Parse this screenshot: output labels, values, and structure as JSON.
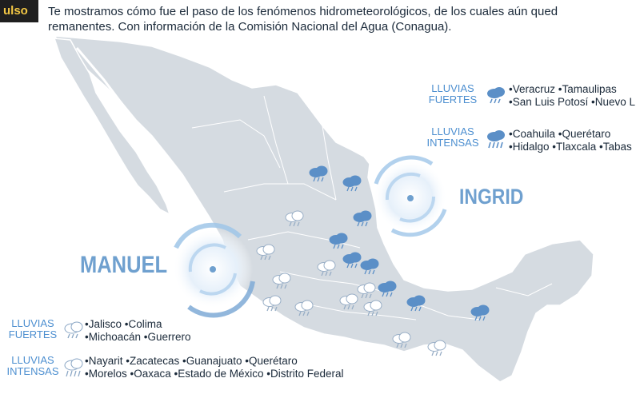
{
  "header": {
    "badge": "ulso",
    "line1": "Te mostramos cómo fue el paso de los fenómenos hidrometeorológicos, de los cuales aún qued",
    "line2": "remanentes. Con información de la Comisión Nacional del Agua (Conagua)."
  },
  "storms": {
    "ingrid": "INGRID",
    "manuel": "MANUEL"
  },
  "legend_ingrid": {
    "fuertes": {
      "label_line1": "LLUVIAS",
      "label_line2": "FUERTES",
      "items_line1": "•Veracruz •Tamaulipas",
      "items_line2": "•San Luis Potosí •Nuevo L"
    },
    "intensas": {
      "label_line1": "LLUVIAS",
      "label_line2": "INTENSAS",
      "items_line1": "•Coahuila •Querétaro",
      "items_line2": "•Hidalgo •Tlaxcala •Tabas"
    }
  },
  "legend_manuel": {
    "fuertes": {
      "label_line1": "LLUVIAS",
      "label_line2": "FUERTES",
      "items_line1": "•Jalisco •Colima",
      "items_line2": "•Michoacán •Guerrero"
    },
    "intensas": {
      "label_line1": "LLUVIAS",
      "label_line2": "INTENSAS",
      "items_line1": "•Nayarit •Zacatecas •Guanajuato •Querétaro",
      "items_line2": "•Morelos •Oaxaca •Estado de México •Distrito Federal"
    }
  },
  "colors": {
    "land": "#d5dbe1",
    "land_stroke": "#ffffff",
    "accent_blue": "#4d8fd0",
    "storm_ring": "#9fc5e8",
    "badge_bg": "#1f1f1f",
    "badge_text": "#f2c744"
  },
  "icons": {
    "strong_rain_icon": "cloud-rain-blue-icon",
    "intense_rain_icon": "cloud-rain-white-icon"
  }
}
